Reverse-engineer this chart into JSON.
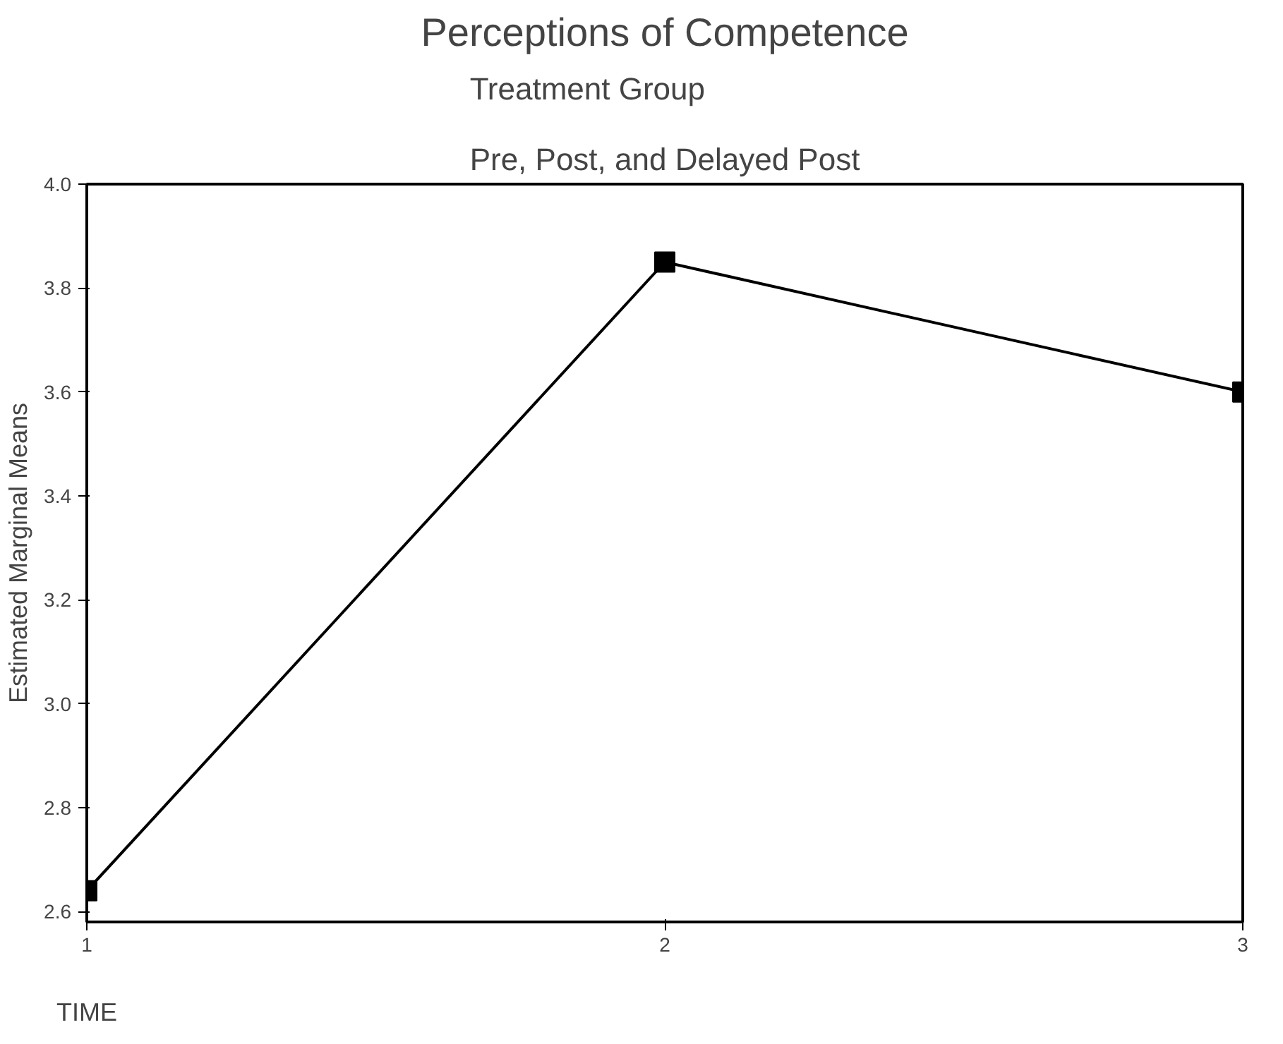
{
  "chart_data": {
    "type": "line",
    "title": "Perceptions of Competence",
    "subtitle": "Treatment Group\n\nPre, Post, and Delayed Post",
    "xlabel": "TIME",
    "ylabel": "Estimated Marginal Means",
    "x": [
      1,
      2,
      3
    ],
    "series": [
      {
        "color": "#000000",
        "values": [
          2.64,
          3.85,
          3.6
        ]
      }
    ],
    "xlim": [
      1,
      3
    ],
    "xticks": [
      1,
      2,
      3
    ],
    "ylim": [
      2.58,
      4.0
    ],
    "yticks": [
      {
        "value": 2.6,
        "label": "2.6"
      },
      {
        "value": 2.8,
        "label": "2.8"
      },
      {
        "value": 3.0,
        "label": "3.0"
      },
      {
        "value": 3.2,
        "label": "3.2"
      },
      {
        "value": 3.4,
        "label": "3.4"
      },
      {
        "value": 3.6,
        "label": "3.6"
      },
      {
        "value": 3.8,
        "label": "3.8"
      },
      {
        "value": 4.0,
        "label": "4.0"
      }
    ],
    "grid": false,
    "marker": "square",
    "line_style": "solid"
  }
}
